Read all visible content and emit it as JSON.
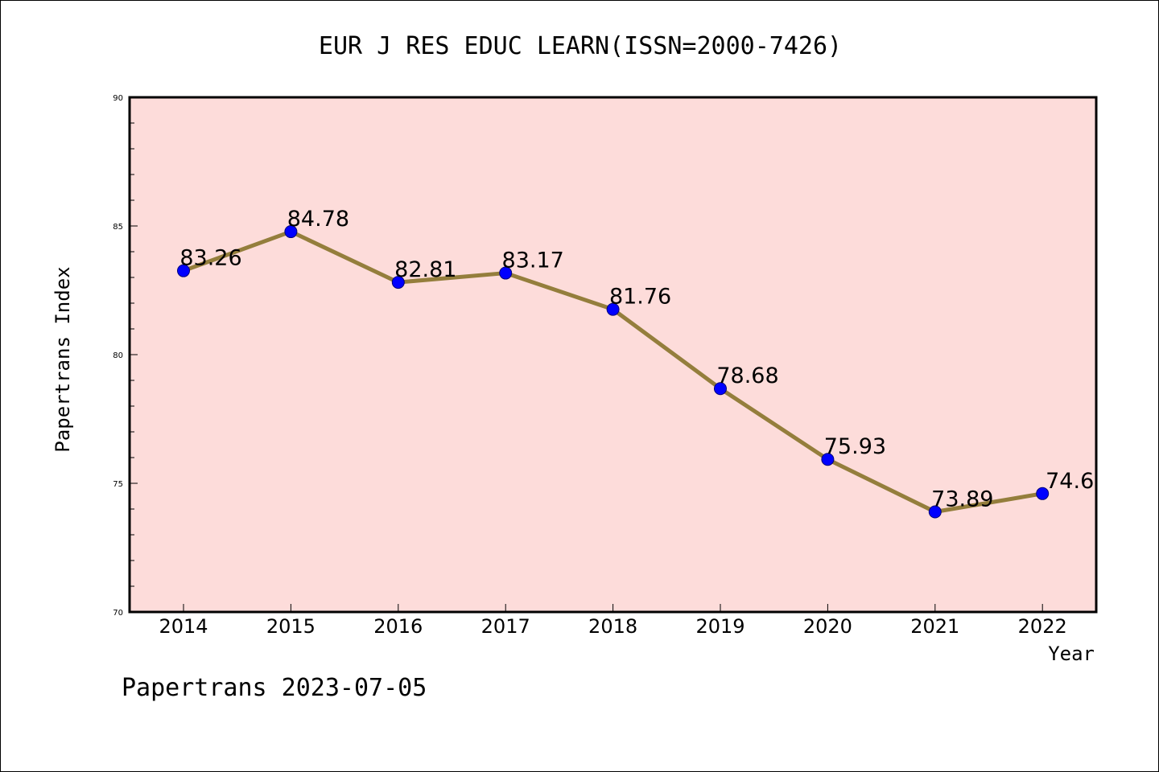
{
  "chart_data": {
    "type": "line",
    "title": "EUR J RES EDUC LEARN(ISSN=2000-7426)",
    "xlabel": "Year",
    "ylabel": "Papertrans Index",
    "categories": [
      "2014",
      "2015",
      "2016",
      "2017",
      "2018",
      "2019",
      "2020",
      "2021",
      "2022"
    ],
    "series": [
      {
        "values": [
          83.26,
          84.78,
          82.81,
          83.17,
          81.76,
          78.68,
          75.93,
          73.89,
          74.6
        ],
        "data_labels": [
          "83.26",
          "84.78",
          "82.81",
          "83.17",
          "81.76",
          "78.68",
          "75.93",
          "73.89",
          "74.6"
        ]
      }
    ],
    "ylim": [
      70,
      90
    ],
    "yticks": [
      "70",
      "75",
      "80",
      "85",
      "90"
    ],
    "grid": false,
    "colors": {
      "background": "#fddcda",
      "line": "#947e3c",
      "marker": "#0000ff"
    }
  },
  "footer": {
    "text": "Papertrans 2023-07-05"
  }
}
